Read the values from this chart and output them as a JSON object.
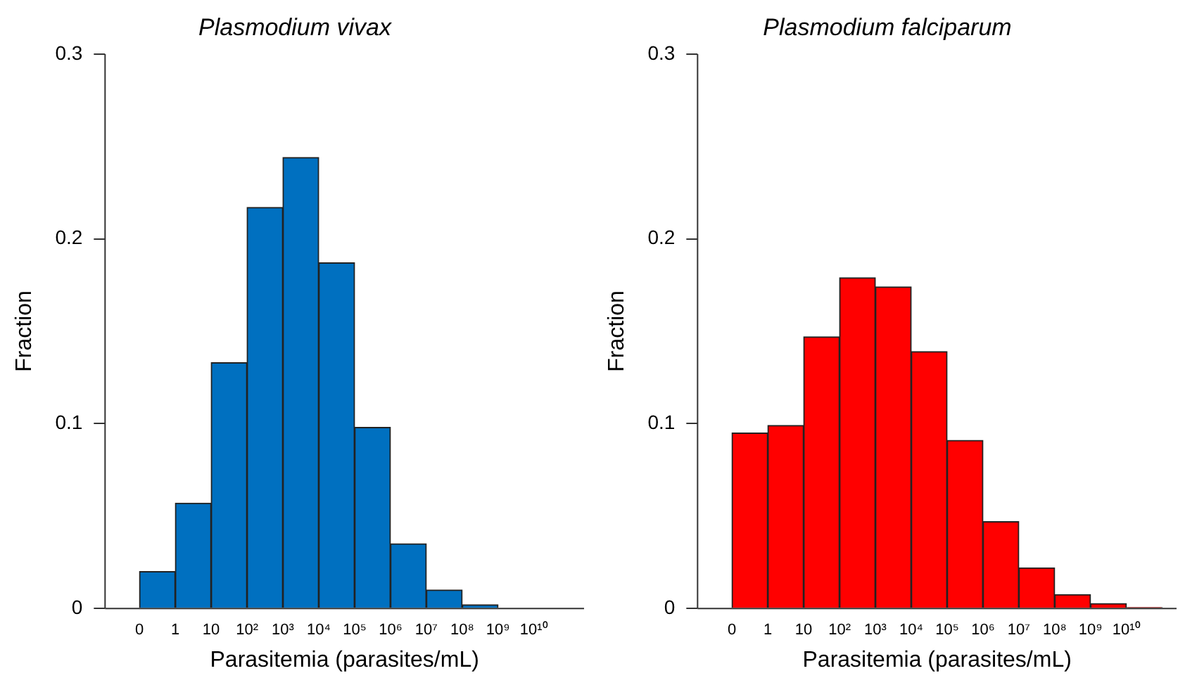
{
  "chart_data": [
    {
      "type": "histogram",
      "title": "Plasmodium vivax",
      "xlabel": "Parasitemia (parasites/mL)",
      "ylabel": "Fraction",
      "bins": [
        0.1,
        1,
        10,
        100,
        1000,
        10000,
        100000,
        1000000,
        10000000,
        100000000,
        1000000000
      ],
      "values": [
        0.02,
        0.057,
        0.133,
        0.217,
        0.244,
        0.187,
        0.098,
        0.035,
        0.01,
        0.002
      ],
      "color": "#0070c0",
      "ylim": [
        0,
        0.3
      ],
      "yticks": [
        0,
        0.1,
        0.2,
        0.3
      ],
      "xlim": [
        0.011,
        250000000000
      ],
      "log": "x",
      "xticks": [
        {
          "value": 0.1,
          "label": "0"
        },
        {
          "value": 1,
          "label": "1"
        },
        {
          "value": 10,
          "label": "10"
        },
        {
          "value": 100,
          "label": "10²"
        },
        {
          "value": 1000,
          "label": "10³"
        },
        {
          "value": 10000,
          "label": "10⁴"
        },
        {
          "value": 100000,
          "label": "10⁵"
        },
        {
          "value": 1000000,
          "label": "10⁶"
        },
        {
          "value": 10000000,
          "label": "10⁷"
        },
        {
          "value": 100000000,
          "label": "10⁸"
        },
        {
          "value": 1000000000,
          "label": "10⁹"
        },
        {
          "value": 10000000000,
          "label": "10¹⁰"
        }
      ],
      "grid": false,
      "legend": false
    },
    {
      "type": "histogram",
      "title": "Plasmodium falciparum",
      "xlabel": "Parasitemia (parasites/mL)",
      "ylabel": "Fraction",
      "bins": [
        0.1,
        1,
        10,
        100,
        1000,
        10000,
        100000,
        1000000,
        10000000,
        100000000,
        1000000000,
        10000000000,
        100000000000
      ],
      "values": [
        0.095,
        0.099,
        0.147,
        0.179,
        0.174,
        0.139,
        0.091,
        0.047,
        0.022,
        0.0075,
        0.0027,
        0.0005
      ],
      "color": "#ff0000",
      "ylim": [
        0,
        0.3
      ],
      "yticks": [
        0,
        0.1,
        0.2,
        0.3
      ],
      "xlim": [
        0.011,
        250000000000
      ],
      "log": "x",
      "xticks": [
        {
          "value": 0.1,
          "label": "0"
        },
        {
          "value": 1,
          "label": "1"
        },
        {
          "value": 10,
          "label": "10"
        },
        {
          "value": 100,
          "label": "10²"
        },
        {
          "value": 1000,
          "label": "10³"
        },
        {
          "value": 10000,
          "label": "10⁴"
        },
        {
          "value": 100000,
          "label": "10⁵"
        },
        {
          "value": 1000000,
          "label": "10⁶"
        },
        {
          "value": 10000000,
          "label": "10⁷"
        },
        {
          "value": 100000000,
          "label": "10⁸"
        },
        {
          "value": 1000000000,
          "label": "10⁹"
        },
        {
          "value": 10000000000,
          "label": "10¹⁰"
        }
      ],
      "grid": false,
      "legend": false
    }
  ]
}
